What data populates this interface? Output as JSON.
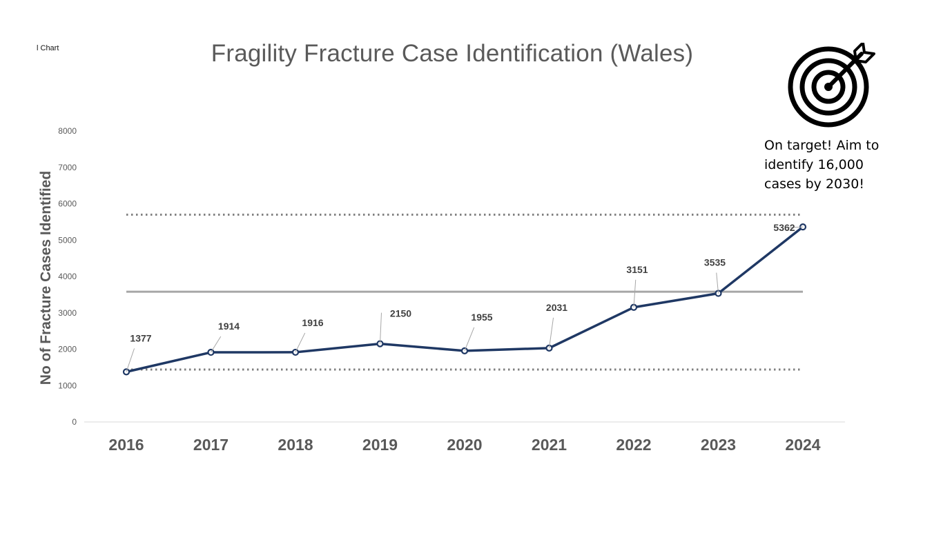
{
  "page": {
    "corner_label": "l Chart"
  },
  "annotation": {
    "icon": "target-arrow-icon",
    "lines": [
      "On target! Aim to",
      "identify 16,000",
      "cases by 2030!"
    ]
  },
  "chart_data": {
    "type": "line",
    "title": "Fragility Fracture Case Identification (Wales)",
    "xlabel": "",
    "ylabel": "No of Fracture Cases Identified",
    "categories": [
      "2016",
      "2017",
      "2018",
      "2019",
      "2020",
      "2021",
      "2022",
      "2023",
      "2024"
    ],
    "series": [
      {
        "values": [
          1377,
          1914,
          1916,
          2150,
          1955,
          2031,
          3151,
          3535,
          5362
        ],
        "color": "#1f3864"
      }
    ],
    "data_labels": [
      "1377",
      "1914",
      "1916",
      "2150",
      "1955",
      "2031",
      "3151",
      "3535",
      "5362"
    ],
    "ylim": [
      0,
      8000
    ],
    "yticks": [
      0,
      1000,
      2000,
      3000,
      4000,
      5000,
      6000,
      7000,
      8000
    ],
    "ytick_labels": [
      "0",
      "1000",
      "2000",
      "3000",
      "4000",
      "5000",
      "6000",
      "7000",
      "8000"
    ],
    "reference_lines": [
      {
        "kind": "mean",
        "value": 3580,
        "style": "solid",
        "color": "#a6a6a6"
      },
      {
        "kind": "upper",
        "value": 5700,
        "style": "dotted",
        "color": "#7f7f7f"
      },
      {
        "kind": "lower",
        "value": 1440,
        "style": "dotted",
        "color": "#7f7f7f"
      }
    ],
    "grid": false,
    "legend": "none"
  }
}
